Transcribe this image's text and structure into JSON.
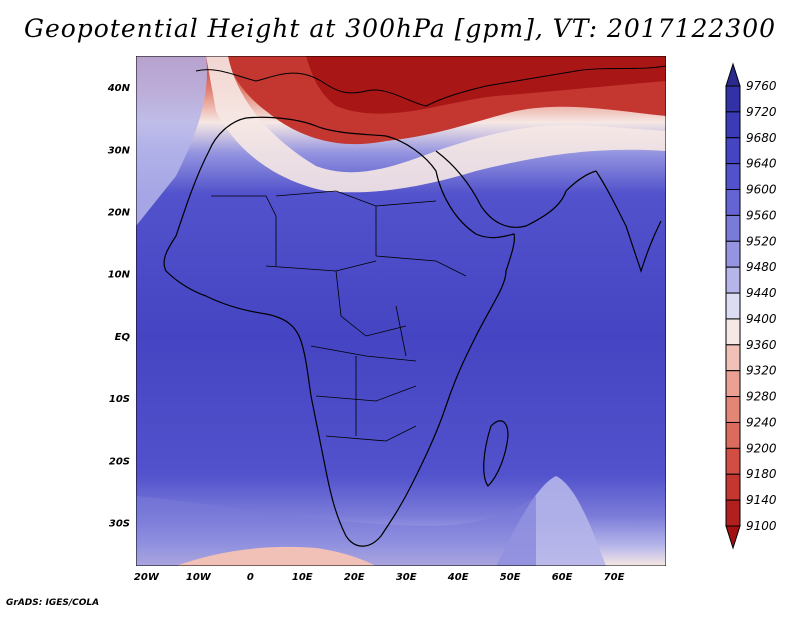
{
  "title": "Geopotential Height at 300hPa [gpm], VT: 2017122300",
  "credit": "GrADS: IGES/COLA",
  "map": {
    "lat_labels": [
      "40N",
      "30N",
      "20N",
      "10N",
      "EQ",
      "10S",
      "20S",
      "30S"
    ],
    "lon_labels": [
      "20W",
      "10W",
      "0",
      "10E",
      "20E",
      "30E",
      "40E",
      "50E",
      "60E",
      "70E"
    ],
    "lon_range": [
      -22,
      80
    ],
    "lat_range": [
      -37,
      45
    ]
  },
  "colorbar": {
    "levels": [
      9760,
      9720,
      9680,
      9640,
      9600,
      9560,
      9520,
      9480,
      9440,
      9400,
      9360,
      9320,
      9280,
      9240,
      9200,
      9180,
      9140,
      9100
    ],
    "colors": [
      "#2b2a8f",
      "#3232a6",
      "#3b3bb7",
      "#4545c3",
      "#5252cc",
      "#6464d4",
      "#7a7ad9",
      "#9494e0",
      "#b5b5ea",
      "#dcdcf3",
      "#f6e8e4",
      "#f1c0b6",
      "#eaa093",
      "#e38676",
      "#db6b5c",
      "#d24e44",
      "#c43630",
      "#b21f1f",
      "#a31010"
    ]
  }
}
